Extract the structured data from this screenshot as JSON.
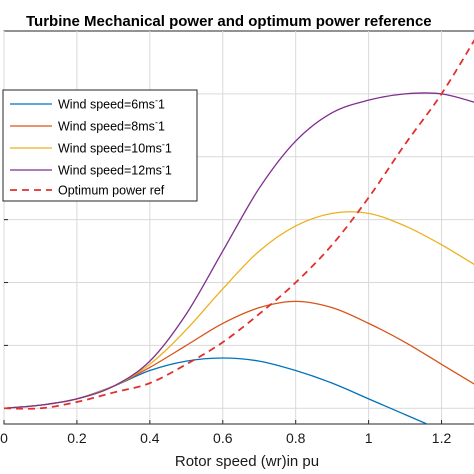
{
  "chart_data": {
    "type": "line",
    "title": "Turbine Mechanical power and optimum power reference",
    "xlabel": "Rotor speed (wr)in pu",
    "ylabel": "",
    "xlim": [
      0,
      1.3
    ],
    "ylim": [
      -0.05,
      1.2
    ],
    "xticks": [
      0,
      0.2,
      0.4,
      0.6,
      0.8,
      1,
      1.2
    ],
    "xtick_labels": [
      "0",
      "0.2",
      "0.4",
      "0.6",
      "0.8",
      "1",
      "1.2"
    ],
    "yticks": [
      0,
      0.2,
      0.4,
      0.6,
      0.8,
      1.0
    ],
    "grid": true,
    "legend_position": "top-left",
    "series": [
      {
        "name": "Wind speed=6ms^-1",
        "color": "#0072BD",
        "style": "solid",
        "x": [
          0,
          0.1,
          0.2,
          0.3,
          0.4,
          0.5,
          0.6,
          0.7,
          0.8,
          0.9,
          1.0,
          1.1,
          1.2,
          1.3
        ],
        "y": [
          0.0,
          0.01,
          0.03,
          0.07,
          0.12,
          0.15,
          0.16,
          0.15,
          0.12,
          0.08,
          0.03,
          -0.02,
          -0.07,
          -0.12
        ]
      },
      {
        "name": "Wind speed=8ms^-1",
        "color": "#D95319",
        "style": "solid",
        "x": [
          0,
          0.1,
          0.2,
          0.3,
          0.4,
          0.5,
          0.6,
          0.7,
          0.8,
          0.9,
          1.0,
          1.1,
          1.2,
          1.3
        ],
        "y": [
          0.0,
          0.01,
          0.03,
          0.07,
          0.13,
          0.2,
          0.27,
          0.32,
          0.34,
          0.32,
          0.27,
          0.21,
          0.14,
          0.07
        ]
      },
      {
        "name": "Wind speed=10ms^-1",
        "color": "#EDB120",
        "style": "solid",
        "x": [
          0,
          0.1,
          0.2,
          0.3,
          0.4,
          0.5,
          0.6,
          0.7,
          0.8,
          0.9,
          1.0,
          1.1,
          1.2,
          1.3
        ],
        "y": [
          0.0,
          0.01,
          0.03,
          0.07,
          0.14,
          0.25,
          0.38,
          0.5,
          0.58,
          0.62,
          0.62,
          0.58,
          0.52,
          0.45
        ]
      },
      {
        "name": "Wind speed=12ms^-1",
        "color": "#7E2F8E",
        "style": "solid",
        "x": [
          0,
          0.1,
          0.2,
          0.3,
          0.4,
          0.5,
          0.6,
          0.7,
          0.8,
          0.9,
          1.0,
          1.1,
          1.2,
          1.3
        ],
        "y": [
          0.0,
          0.01,
          0.03,
          0.07,
          0.15,
          0.3,
          0.5,
          0.7,
          0.85,
          0.94,
          0.98,
          1.0,
          1.0,
          0.97
        ]
      },
      {
        "name": "Optimum power ref",
        "color": "#E03030",
        "style": "dashed",
        "x": [
          0,
          0.1,
          0.2,
          0.3,
          0.4,
          0.5,
          0.6,
          0.7,
          0.8,
          0.9,
          1.0,
          1.1,
          1.2,
          1.3
        ],
        "y": [
          0.0,
          0.0,
          0.02,
          0.05,
          0.08,
          0.14,
          0.21,
          0.3,
          0.4,
          0.52,
          0.67,
          0.84,
          1.0,
          1.19
        ]
      }
    ],
    "legend": {
      "entries": [
        {
          "label_main": "Wind speed=6ms",
          "label_sup": "-",
          "label_tail": "1"
        },
        {
          "label_main": "Wind speed=8ms",
          "label_sup": "-",
          "label_tail": "1"
        },
        {
          "label_main": "Wind speed=10ms",
          "label_sup": "-",
          "label_tail": "1"
        },
        {
          "label_main": "Wind speed=12ms",
          "label_sup": "-",
          "label_tail": "1"
        },
        {
          "label_main": "Optimum power ref",
          "label_sup": "",
          "label_tail": ""
        }
      ]
    }
  }
}
